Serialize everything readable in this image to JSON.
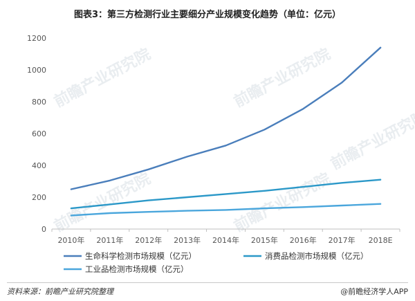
{
  "header": {
    "title": "图表3：第三方检测行业主要细分产业规模变化趋势（单位：亿元）"
  },
  "footer": {
    "source": "资料来源：前瞻产业研究院整理",
    "brand": "@前瞻经济学人APP"
  },
  "watermark": {
    "text": "前瞻产业研究院"
  },
  "chart_data": {
    "type": "line",
    "title": "图表3：第三方检测行业主要细分产业规模变化趋势（单位：亿元）",
    "xlabel": "",
    "ylabel": "",
    "categories": [
      "2010年",
      "2011年",
      "2012年",
      "2013年",
      "2014年",
      "2015年",
      "2016年",
      "2017年",
      "2018E"
    ],
    "ylim": [
      0,
      1200
    ],
    "yticks": [
      0,
      200,
      400,
      600,
      800,
      1000,
      1200
    ],
    "grid": false,
    "legend_position": "bottom",
    "series": [
      {
        "name": "生命科学检测市场规模（亿元）",
        "color": "#4a7ebb",
        "values": [
          250,
          305,
          375,
          455,
          525,
          625,
          755,
          920,
          1140
        ]
      },
      {
        "name": "消费品检测市场规模（亿元）",
        "color": "#2b98c8",
        "values": [
          130,
          155,
          180,
          200,
          220,
          240,
          265,
          290,
          310
        ]
      },
      {
        "name": "工业品检测市场规模（亿元）",
        "color": "#4aa6dc",
        "values": [
          85,
          100,
          108,
          115,
          120,
          130,
          138,
          148,
          158
        ]
      }
    ]
  }
}
